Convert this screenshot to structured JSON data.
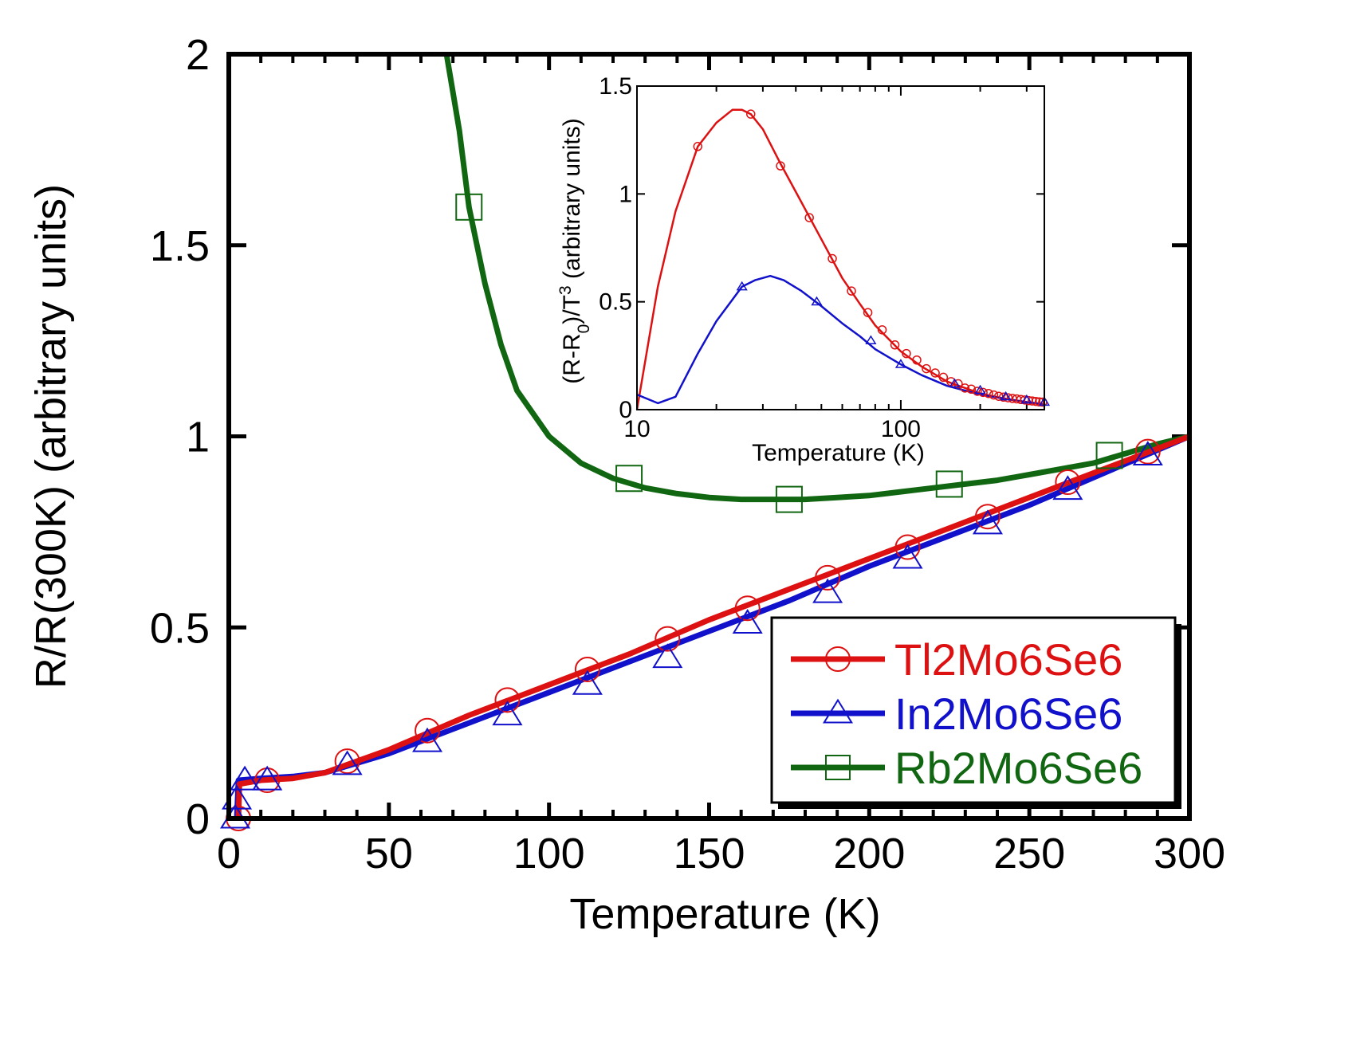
{
  "chart_data": [
    {
      "id": "main",
      "type": "line",
      "title": "",
      "xlabel": "Temperature (K)",
      "ylabel": "R/R(300K) (arbitrary units)",
      "xlim": [
        0,
        300
      ],
      "ylim": [
        0,
        2
      ],
      "xticks": [
        0,
        50,
        100,
        150,
        200,
        250,
        300
      ],
      "xtick_labels": [
        "0",
        "50",
        "100",
        "150",
        "200",
        "250",
        "300"
      ],
      "yticks": [
        0,
        0.5,
        1,
        1.5,
        2
      ],
      "ytick_labels": [
        "0",
        "0.5",
        "1",
        "1.5",
        "2"
      ],
      "legend_position": "bottom-right",
      "series": [
        {
          "name": "Tl2Mo6Se6",
          "color": "#dd1111",
          "marker": "circle",
          "line": [
            [
              3,
              0
            ],
            [
              3.3,
              0.09
            ],
            [
              10,
              0.1
            ],
            [
              20,
              0.105
            ],
            [
              30,
              0.12
            ],
            [
              50,
              0.18
            ],
            [
              75,
              0.27
            ],
            [
              100,
              0.35
            ],
            [
              125,
              0.43
            ],
            [
              150,
              0.52
            ],
            [
              175,
              0.6
            ],
            [
              200,
              0.68
            ],
            [
              225,
              0.76
            ],
            [
              250,
              0.84
            ],
            [
              275,
              0.92
            ],
            [
              300,
              1.0
            ]
          ],
          "markers": [
            [
              3,
              0
            ],
            [
              12,
              0.1
            ],
            [
              37,
              0.15
            ],
            [
              62,
              0.23
            ],
            [
              87,
              0.31
            ],
            [
              112,
              0.39
            ],
            [
              137,
              0.47
            ],
            [
              162,
              0.55
            ],
            [
              187,
              0.63
            ],
            [
              212,
              0.71
            ],
            [
              237,
              0.79
            ],
            [
              262,
              0.88
            ],
            [
              287,
              0.96
            ]
          ]
        },
        {
          "name": "In2Mo6Se6",
          "color": "#1111cc",
          "marker": "triangle",
          "line": [
            [
              2.5,
              0
            ],
            [
              3,
              0.1
            ],
            [
              10,
              0.105
            ],
            [
              20,
              0.11
            ],
            [
              30,
              0.12
            ],
            [
              50,
              0.17
            ],
            [
              75,
              0.25
            ],
            [
              100,
              0.33
            ],
            [
              125,
              0.41
            ],
            [
              150,
              0.49
            ],
            [
              175,
              0.57
            ],
            [
              200,
              0.66
            ],
            [
              225,
              0.74
            ],
            [
              250,
              0.82
            ],
            [
              275,
              0.91
            ],
            [
              300,
              1.0
            ]
          ],
          "markers": [
            [
              2,
              0
            ],
            [
              2.5,
              0.05
            ],
            [
              5,
              0.1
            ],
            [
              12,
              0.1
            ],
            [
              37,
              0.14
            ],
            [
              62,
              0.2
            ],
            [
              87,
              0.27
            ],
            [
              112,
              0.35
            ],
            [
              137,
              0.42
            ],
            [
              162,
              0.51
            ],
            [
              187,
              0.59
            ],
            [
              212,
              0.68
            ],
            [
              237,
              0.77
            ],
            [
              262,
              0.86
            ],
            [
              287,
              0.95
            ]
          ]
        },
        {
          "name": "Rb2Mo6Se6",
          "color": "#116611",
          "marker": "square",
          "line": [
            [
              68,
              2.0
            ],
            [
              70,
              1.9
            ],
            [
              72,
              1.8
            ],
            [
              75,
              1.6
            ],
            [
              80,
              1.4
            ],
            [
              85,
              1.24
            ],
            [
              90,
              1.12
            ],
            [
              100,
              1.0
            ],
            [
              110,
              0.93
            ],
            [
              120,
              0.89
            ],
            [
              130,
              0.865
            ],
            [
              140,
              0.85
            ],
            [
              150,
              0.84
            ],
            [
              160,
              0.835
            ],
            [
              170,
              0.835
            ],
            [
              180,
              0.835
            ],
            [
              190,
              0.84
            ],
            [
              200,
              0.845
            ],
            [
              210,
              0.855
            ],
            [
              220,
              0.865
            ],
            [
              230,
              0.875
            ],
            [
              240,
              0.885
            ],
            [
              250,
              0.9
            ],
            [
              260,
              0.915
            ],
            [
              270,
              0.93
            ],
            [
              280,
              0.955
            ],
            [
              290,
              0.98
            ],
            [
              300,
              1.0
            ]
          ],
          "markers": [
            [
              75,
              1.6
            ],
            [
              125,
              0.89
            ],
            [
              175,
              0.835
            ],
            [
              225,
              0.875
            ],
            [
              275,
              0.95
            ]
          ]
        }
      ]
    },
    {
      "id": "inset",
      "type": "line",
      "title": "",
      "xlabel": "Temperature (K)",
      "ylabel": "(R-R₀)/T³ (arbitrary units)",
      "ylabel_parts": {
        "a": "(R-R",
        "sub": "0",
        "b": ")/T",
        "sup": "3",
        "c": " (arbitrary units)"
      },
      "xscale": "log",
      "xlim": [
        10,
        350
      ],
      "ylim": [
        0,
        1.5
      ],
      "xticks": [
        10,
        100
      ],
      "xtick_labels": [
        "10",
        "100"
      ],
      "yticks": [
        0,
        0.5,
        1,
        1.5
      ],
      "ytick_labels": [
        "0",
        "0.5",
        "1",
        "1.5"
      ],
      "series": [
        {
          "name": "Tl2Mo6Se6",
          "color": "#dd1111",
          "marker": "circle",
          "line": [
            [
              10,
              0
            ],
            [
              12,
              0.57
            ],
            [
              14,
              0.92
            ],
            [
              17,
              1.22
            ],
            [
              20,
              1.33
            ],
            [
              23,
              1.39
            ],
            [
              25,
              1.39
            ],
            [
              27,
              1.37
            ],
            [
              30,
              1.3
            ],
            [
              35,
              1.14
            ],
            [
              40,
              1.01
            ],
            [
              50,
              0.79
            ],
            [
              60,
              0.61
            ],
            [
              70,
              0.49
            ],
            [
              80,
              0.39
            ],
            [
              100,
              0.27
            ],
            [
              120,
              0.2
            ],
            [
              150,
              0.13
            ],
            [
              200,
              0.075
            ],
            [
              250,
              0.05
            ],
            [
              300,
              0.035
            ],
            [
              350,
              0.025
            ]
          ],
          "markers": [
            [
              17,
              1.22
            ],
            [
              27,
              1.37
            ],
            [
              35,
              1.13
            ],
            [
              45,
              0.89
            ],
            [
              55,
              0.7
            ],
            [
              65,
              0.55
            ],
            [
              75,
              0.45
            ],
            [
              85,
              0.37
            ],
            [
              95,
              0.3
            ],
            [
              105,
              0.26
            ],
            [
              115,
              0.23
            ],
            [
              125,
              0.19
            ],
            [
              135,
              0.17
            ],
            [
              145,
              0.15
            ],
            [
              155,
              0.13
            ],
            [
              165,
              0.12
            ],
            [
              175,
              0.1
            ],
            [
              185,
              0.095
            ],
            [
              195,
              0.085
            ],
            [
              205,
              0.08
            ],
            [
              215,
              0.075
            ],
            [
              225,
              0.068
            ],
            [
              235,
              0.062
            ],
            [
              245,
              0.058
            ],
            [
              255,
              0.055
            ],
            [
              265,
              0.052
            ],
            [
              275,
              0.05
            ],
            [
              285,
              0.047
            ],
            [
              295,
              0.045
            ],
            [
              305,
              0.042
            ],
            [
              315,
              0.04
            ],
            [
              325,
              0.038
            ],
            [
              335,
              0.036
            ],
            [
              345,
              0.035
            ]
          ]
        },
        {
          "name": "In2Mo6Se6",
          "color": "#1111cc",
          "marker": "triangle",
          "line": [
            [
              10,
              0.07
            ],
            [
              12,
              0.03
            ],
            [
              14,
              0.06
            ],
            [
              17,
              0.26
            ],
            [
              20,
              0.41
            ],
            [
              23,
              0.51
            ],
            [
              25,
              0.57
            ],
            [
              28,
              0.6
            ],
            [
              32,
              0.62
            ],
            [
              36,
              0.6
            ],
            [
              42,
              0.55
            ],
            [
              50,
              0.48
            ],
            [
              60,
              0.4
            ],
            [
              70,
              0.34
            ],
            [
              80,
              0.28
            ],
            [
              100,
              0.21
            ],
            [
              120,
              0.16
            ],
            [
              150,
              0.11
            ],
            [
              200,
              0.07
            ],
            [
              250,
              0.05
            ],
            [
              300,
              0.035
            ],
            [
              350,
              0.025
            ]
          ],
          "markers": [
            [
              25,
              0.57
            ],
            [
              48,
              0.5
            ],
            [
              77,
              0.32
            ],
            [
              100,
              0.21
            ],
            [
              160,
              0.12
            ],
            [
              200,
              0.09
            ],
            [
              250,
              0.06
            ],
            [
              300,
              0.045
            ],
            [
              350,
              0.035
            ]
          ]
        }
      ]
    }
  ]
}
